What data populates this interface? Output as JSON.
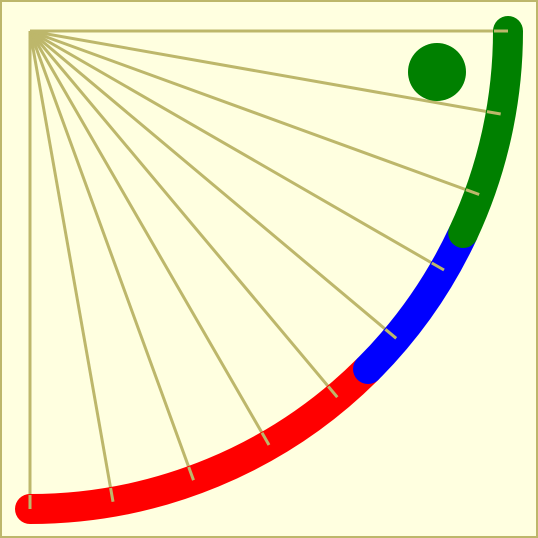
{
  "colors": {
    "background": "#ffffe0",
    "frame": "#bdb76b",
    "rays": "#bdb76b",
    "arc_low": "#ff0000",
    "arc_mid": "#0000ff",
    "arc_high": "#008000",
    "dot": "#008000"
  },
  "arc_segments": [
    {
      "name": "arc-segment-red",
      "color_key": "arc_low",
      "from_angle_deg": 0,
      "to_angle_deg": 45
    },
    {
      "name": "arc-segment-blue",
      "color_key": "arc_mid",
      "from_angle_deg": 45,
      "to_angle_deg": 65
    },
    {
      "name": "arc-segment-green",
      "color_key": "arc_high",
      "from_angle_deg": 65,
      "to_angle_deg": 90
    }
  ],
  "ray_angles_deg": [
    0,
    10,
    20,
    30,
    40,
    50,
    60,
    70,
    80,
    90
  ]
}
